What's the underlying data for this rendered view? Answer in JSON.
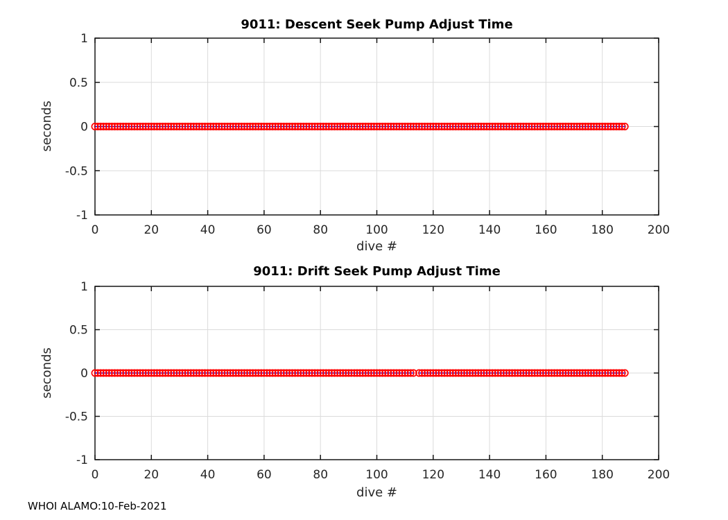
{
  "figure": {
    "footer": "WHOI ALAMO:10-Feb-2021",
    "background": "#ffffff"
  },
  "chart_data": [
    {
      "type": "line",
      "title": "9011: Descent Seek Pump Adjust Time",
      "xlabel": "dive #",
      "ylabel": "seconds",
      "xlim": [
        0,
        200
      ],
      "ylim": [
        -1,
        1
      ],
      "xticks": [
        0,
        20,
        40,
        60,
        80,
        100,
        120,
        140,
        160,
        180,
        200
      ],
      "yticks": [
        1,
        0.5,
        0,
        -0.5,
        -1
      ],
      "grid": true,
      "legend": "none",
      "series": [
        {
          "name": "descent seek pump adjust time",
          "x_first": 0,
          "x_last": 188,
          "x_step": 1,
          "x_missing": [],
          "y_constant": 0
        }
      ],
      "line_color": "#0000ff",
      "marker": "o",
      "marker_color": "#ff0000",
      "axis_color": "#151515",
      "grid_color": "#dbdbdb",
      "tick_text_color": "#262626"
    },
    {
      "type": "line",
      "title": "9011: Drift Seek Pump Adjust Time",
      "xlabel": "dive #",
      "ylabel": "seconds",
      "xlim": [
        0,
        200
      ],
      "ylim": [
        -1,
        1
      ],
      "xticks": [
        0,
        20,
        40,
        60,
        80,
        100,
        120,
        140,
        160,
        180,
        200
      ],
      "yticks": [
        1,
        0.5,
        0,
        -0.5,
        -1
      ],
      "grid": true,
      "legend": "none",
      "series": [
        {
          "name": "drift seek pump adjust time",
          "x_first": 0,
          "x_last": 188,
          "x_step": 1,
          "x_missing": [
            114
          ],
          "y_constant": 0
        }
      ],
      "line_color": "#0000ff",
      "marker": "o",
      "marker_color": "#ff0000",
      "axis_color": "#151515",
      "grid_color": "#dbdbdb",
      "tick_text_color": "#262626"
    }
  ]
}
